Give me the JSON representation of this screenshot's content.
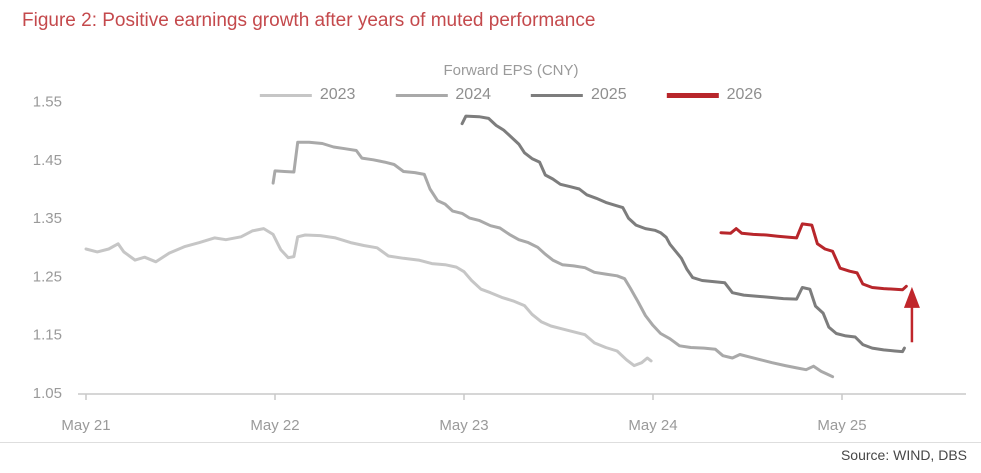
{
  "header": {
    "title": "Figure 2: Positive earnings growth after years of muted performance"
  },
  "footer": {
    "source": "Source: WIND, DBS"
  },
  "chart_data": {
    "type": "line",
    "title": "Forward EPS (CNY)",
    "legend_position": "top",
    "grid": false,
    "x_unit": "years since May 2021",
    "x_axis": {
      "tick_labels": [
        "May 21",
        "May 22",
        "May 23",
        "May 24",
        "May 25"
      ],
      "tick_positions": [
        0,
        1,
        2,
        3,
        4
      ],
      "range": [
        0,
        4.66
      ]
    },
    "y_axis": {
      "tick_labels": [
        "1.55",
        "1.45",
        "1.35",
        "1.25",
        "1.15",
        "1.05"
      ],
      "tick_values": [
        1.55,
        1.45,
        1.35,
        1.25,
        1.15,
        1.05
      ],
      "range": [
        1.05,
        1.57
      ]
    },
    "series": [
      {
        "name": "2023",
        "color": "#c6c6c6",
        "points": [
          [
            0.0,
            1.297
          ],
          [
            0.06,
            1.292
          ],
          [
            0.12,
            1.297
          ],
          [
            0.17,
            1.306
          ],
          [
            0.2,
            1.292
          ],
          [
            0.26,
            1.278
          ],
          [
            0.31,
            1.283
          ],
          [
            0.37,
            1.275
          ],
          [
            0.44,
            1.29
          ],
          [
            0.52,
            1.301
          ],
          [
            0.6,
            1.308
          ],
          [
            0.68,
            1.316
          ],
          [
            0.74,
            1.313
          ],
          [
            0.82,
            1.318
          ],
          [
            0.88,
            1.328
          ],
          [
            0.94,
            1.332
          ],
          [
            0.99,
            1.322
          ],
          [
            1.03,
            1.296
          ],
          [
            1.07,
            1.282
          ],
          [
            1.1,
            1.284
          ],
          [
            1.12,
            1.318
          ],
          [
            1.16,
            1.321
          ],
          [
            1.24,
            1.32
          ],
          [
            1.32,
            1.316
          ],
          [
            1.4,
            1.308
          ],
          [
            1.47,
            1.303
          ],
          [
            1.54,
            1.299
          ],
          [
            1.6,
            1.285
          ],
          [
            1.68,
            1.281
          ],
          [
            1.76,
            1.278
          ],
          [
            1.83,
            1.272
          ],
          [
            1.9,
            1.27
          ],
          [
            1.96,
            1.266
          ],
          [
            2.0,
            1.258
          ],
          [
            2.04,
            1.243
          ],
          [
            2.09,
            1.228
          ],
          [
            2.14,
            1.222
          ],
          [
            2.2,
            1.214
          ],
          [
            2.26,
            1.208
          ],
          [
            2.32,
            1.2
          ],
          [
            2.36,
            1.185
          ],
          [
            2.41,
            1.172
          ],
          [
            2.46,
            1.165
          ],
          [
            2.52,
            1.16
          ],
          [
            2.58,
            1.155
          ],
          [
            2.64,
            1.15
          ],
          [
            2.69,
            1.136
          ],
          [
            2.75,
            1.128
          ],
          [
            2.81,
            1.122
          ],
          [
            2.86,
            1.107
          ],
          [
            2.9,
            1.097
          ],
          [
            2.94,
            1.102
          ],
          [
            2.97,
            1.11
          ],
          [
            2.99,
            1.105
          ]
        ]
      },
      {
        "name": "2024",
        "color": "#a9a9a9",
        "points": [
          [
            0.99,
            1.41
          ],
          [
            1.0,
            1.431
          ],
          [
            1.05,
            1.43
          ],
          [
            1.1,
            1.429
          ],
          [
            1.12,
            1.48
          ],
          [
            1.18,
            1.48
          ],
          [
            1.25,
            1.478
          ],
          [
            1.31,
            1.472
          ],
          [
            1.37,
            1.469
          ],
          [
            1.43,
            1.466
          ],
          [
            1.46,
            1.453
          ],
          [
            1.52,
            1.45
          ],
          [
            1.58,
            1.446
          ],
          [
            1.63,
            1.442
          ],
          [
            1.68,
            1.43
          ],
          [
            1.74,
            1.428
          ],
          [
            1.79,
            1.425
          ],
          [
            1.82,
            1.4
          ],
          [
            1.86,
            1.38
          ],
          [
            1.9,
            1.374
          ],
          [
            1.94,
            1.362
          ],
          [
            1.99,
            1.358
          ],
          [
            2.03,
            1.35
          ],
          [
            2.08,
            1.346
          ],
          [
            2.14,
            1.337
          ],
          [
            2.19,
            1.333
          ],
          [
            2.24,
            1.322
          ],
          [
            2.29,
            1.313
          ],
          [
            2.34,
            1.308
          ],
          [
            2.39,
            1.3
          ],
          [
            2.43,
            1.288
          ],
          [
            2.47,
            1.278
          ],
          [
            2.52,
            1.27
          ],
          [
            2.58,
            1.268
          ],
          [
            2.64,
            1.265
          ],
          [
            2.69,
            1.257
          ],
          [
            2.75,
            1.254
          ],
          [
            2.81,
            1.251
          ],
          [
            2.85,
            1.246
          ],
          [
            2.88,
            1.23
          ],
          [
            2.92,
            1.207
          ],
          [
            2.96,
            1.183
          ],
          [
            3.0,
            1.166
          ],
          [
            3.04,
            1.152
          ],
          [
            3.09,
            1.143
          ],
          [
            3.14,
            1.131
          ],
          [
            3.2,
            1.128
          ],
          [
            3.27,
            1.127
          ],
          [
            3.33,
            1.125
          ],
          [
            3.37,
            1.114
          ],
          [
            3.42,
            1.11
          ],
          [
            3.46,
            1.116
          ],
          [
            3.51,
            1.112
          ],
          [
            3.57,
            1.107
          ],
          [
            3.63,
            1.102
          ],
          [
            3.7,
            1.097
          ],
          [
            3.76,
            1.093
          ],
          [
            3.81,
            1.09
          ],
          [
            3.85,
            1.096
          ],
          [
            3.89,
            1.087
          ],
          [
            3.93,
            1.081
          ],
          [
            3.95,
            1.078
          ]
        ]
      },
      {
        "name": "2025",
        "color": "#7d7d7d",
        "points": [
          [
            1.99,
            1.512
          ],
          [
            2.01,
            1.525
          ],
          [
            2.08,
            1.524
          ],
          [
            2.13,
            1.521
          ],
          [
            2.17,
            1.509
          ],
          [
            2.21,
            1.501
          ],
          [
            2.25,
            1.489
          ],
          [
            2.29,
            1.477
          ],
          [
            2.32,
            1.462
          ],
          [
            2.36,
            1.452
          ],
          [
            2.4,
            1.446
          ],
          [
            2.43,
            1.424
          ],
          [
            2.47,
            1.417
          ],
          [
            2.51,
            1.408
          ],
          [
            2.56,
            1.404
          ],
          [
            2.61,
            1.4
          ],
          [
            2.65,
            1.39
          ],
          [
            2.7,
            1.384
          ],
          [
            2.75,
            1.377
          ],
          [
            2.8,
            1.372
          ],
          [
            2.84,
            1.368
          ],
          [
            2.87,
            1.35
          ],
          [
            2.91,
            1.338
          ],
          [
            2.96,
            1.332
          ],
          [
            3.01,
            1.329
          ],
          [
            3.04,
            1.325
          ],
          [
            3.07,
            1.317
          ],
          [
            3.09,
            1.305
          ],
          [
            3.12,
            1.293
          ],
          [
            3.15,
            1.281
          ],
          [
            3.18,
            1.262
          ],
          [
            3.21,
            1.248
          ],
          [
            3.26,
            1.243
          ],
          [
            3.32,
            1.241
          ],
          [
            3.38,
            1.239
          ],
          [
            3.42,
            1.222
          ],
          [
            3.48,
            1.218
          ],
          [
            3.55,
            1.216
          ],
          [
            3.62,
            1.214
          ],
          [
            3.69,
            1.212
          ],
          [
            3.76,
            1.211
          ],
          [
            3.79,
            1.231
          ],
          [
            3.83,
            1.228
          ],
          [
            3.86,
            1.199
          ],
          [
            3.9,
            1.187
          ],
          [
            3.93,
            1.163
          ],
          [
            3.97,
            1.152
          ],
          [
            4.02,
            1.148
          ],
          [
            4.07,
            1.146
          ],
          [
            4.11,
            1.133
          ],
          [
            4.16,
            1.127
          ],
          [
            4.22,
            1.124
          ],
          [
            4.28,
            1.122
          ],
          [
            4.32,
            1.121
          ],
          [
            4.33,
            1.127
          ]
        ]
      },
      {
        "name": "2026",
        "color": "#b8262b",
        "points": [
          [
            3.36,
            1.325
          ],
          [
            3.41,
            1.324
          ],
          [
            3.44,
            1.332
          ],
          [
            3.47,
            1.324
          ],
          [
            3.53,
            1.322
          ],
          [
            3.6,
            1.321
          ],
          [
            3.66,
            1.319
          ],
          [
            3.72,
            1.317
          ],
          [
            3.76,
            1.316
          ],
          [
            3.79,
            1.34
          ],
          [
            3.84,
            1.338
          ],
          [
            3.87,
            1.306
          ],
          [
            3.91,
            1.297
          ],
          [
            3.95,
            1.293
          ],
          [
            3.99,
            1.264
          ],
          [
            4.04,
            1.259
          ],
          [
            4.08,
            1.256
          ],
          [
            4.11,
            1.237
          ],
          [
            4.16,
            1.231
          ],
          [
            4.22,
            1.229
          ],
          [
            4.28,
            1.228
          ],
          [
            4.32,
            1.227
          ],
          [
            4.34,
            1.233
          ]
        ]
      }
    ],
    "annotation": {
      "type": "arrow",
      "direction": "up",
      "x": 4.37,
      "y_from": 1.137,
      "y_to": 1.232,
      "color": "#c0262b"
    },
    "axis_color": "#c9c9c9",
    "tick_label_color": "#9a9a9a"
  }
}
